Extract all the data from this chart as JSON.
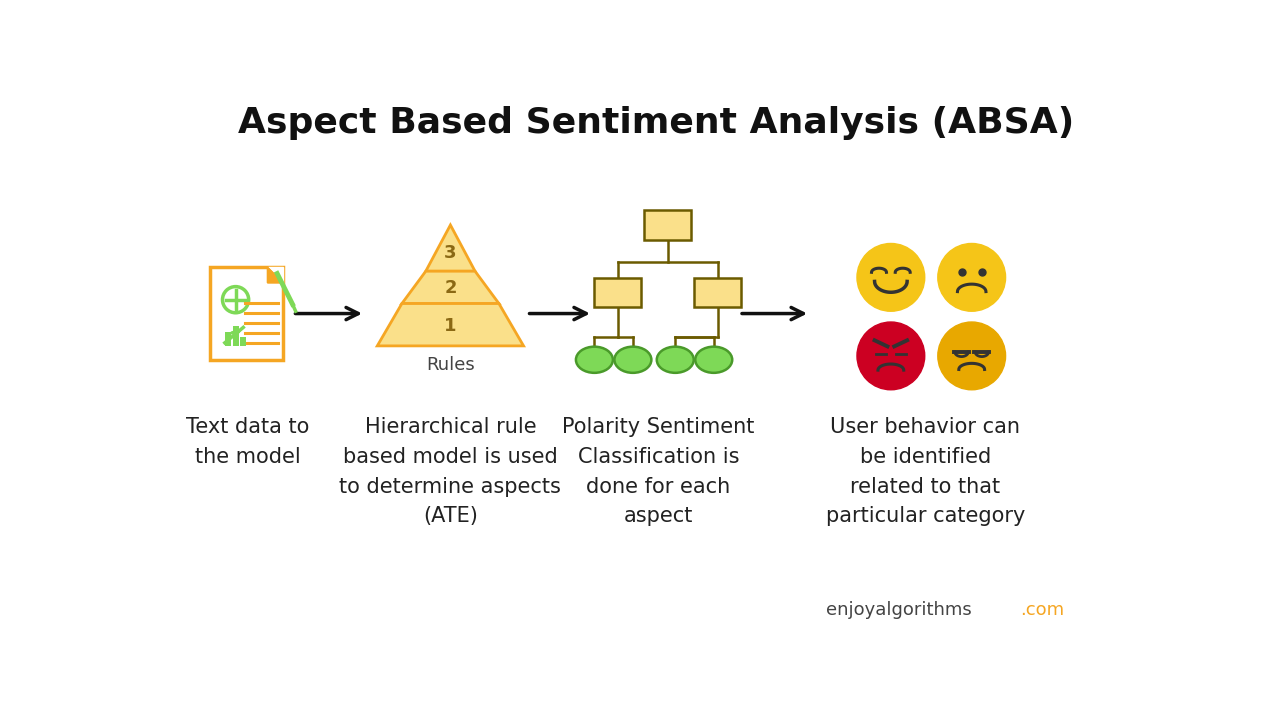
{
  "title": "Aspect Based Sentiment Analysis (ABSA)",
  "title_fontsize": 26,
  "title_fontweight": "bold",
  "bg_color": "#ffffff",
  "label1": "Text data to\nthe model",
  "label2": "Hierarchical rule\nbased model is used\nto determine aspects\n(ATE)",
  "label3": "Polarity Sentiment\nClassification is\ndone for each\naspect",
  "label4": "User behavior can\nbe identified\nrelated to that\nparticular category",
  "label_fontsize": 15,
  "rules_label": "Rules",
  "doc_color_border": "#F5A623",
  "doc_color_green": "#7ED957",
  "pyramid_fill": "#FAE08A",
  "pyramid_border": "#F5A623",
  "pyramid_text_color": "#8B6914",
  "tree_box_fill": "#FAE08A",
  "tree_box_border": "#6B5B00",
  "tree_line_color": "#6B5B00",
  "tree_leaf_fill": "#7ED957",
  "tree_leaf_border": "#4A9A2A",
  "arrow_color": "#111111",
  "emoji_yellow": "#F5C518",
  "emoji_yellow2": "#E8A800",
  "emoji_red": "#CC0022",
  "emoji_border": "#333333",
  "watermark": "enjoyalgorithms",
  "watermark2": ".com",
  "watermark_color1": "#444444",
  "watermark_color2": "#F5A623"
}
